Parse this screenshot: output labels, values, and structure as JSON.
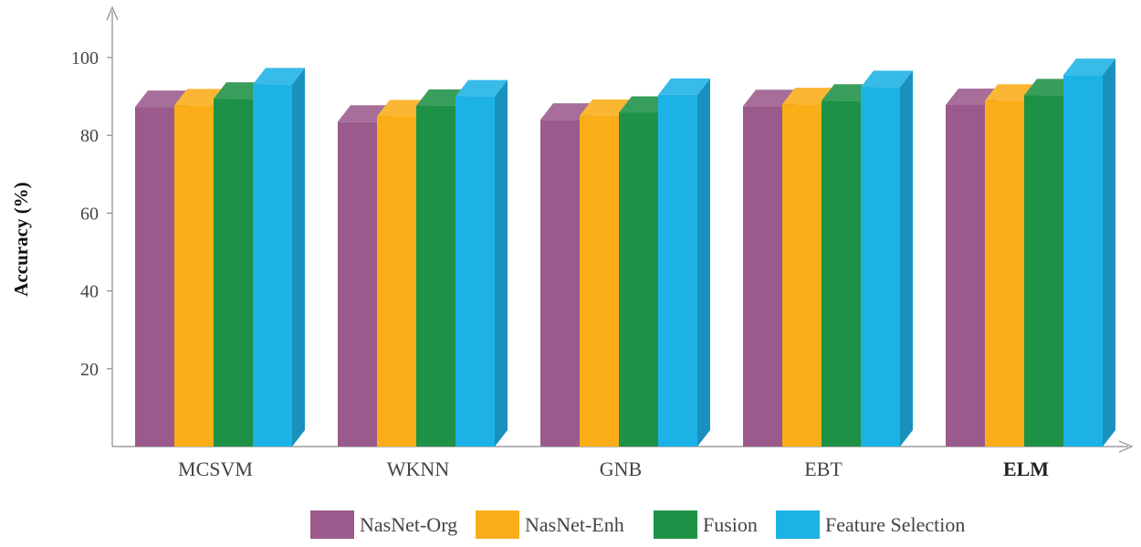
{
  "chart_data": {
    "type": "bar",
    "title": "",
    "xlabel": "",
    "ylabel": "Accuracy (%)",
    "ylim": [
      0,
      110
    ],
    "yticks": [
      20,
      40,
      60,
      80,
      100
    ],
    "categories": [
      "MCSVM",
      "WKNN",
      "GNB",
      "EBT",
      "ELM"
    ],
    "bold_categories": [
      "ELM"
    ],
    "series": [
      {
        "name": "NasNet-Org",
        "color": "#9b5a8c",
        "values": [
          87.3,
          83.5,
          84.0,
          87.5,
          87.8
        ]
      },
      {
        "name": "NasNet-Enh",
        "color": "#fbad18",
        "values": [
          87.7,
          84.9,
          85.0,
          88.0,
          88.9
        ]
      },
      {
        "name": "Fusion",
        "color": "#1d9146",
        "values": [
          89.4,
          87.6,
          85.8,
          88.9,
          90.3
        ]
      },
      {
        "name": "Feature Selection",
        "color": "#1db2e6",
        "values": [
          93.1,
          90.0,
          90.4,
          92.4,
          95.5
        ]
      }
    ],
    "grid": false,
    "legend_position": "bottom-center",
    "style": "3d-bars"
  }
}
